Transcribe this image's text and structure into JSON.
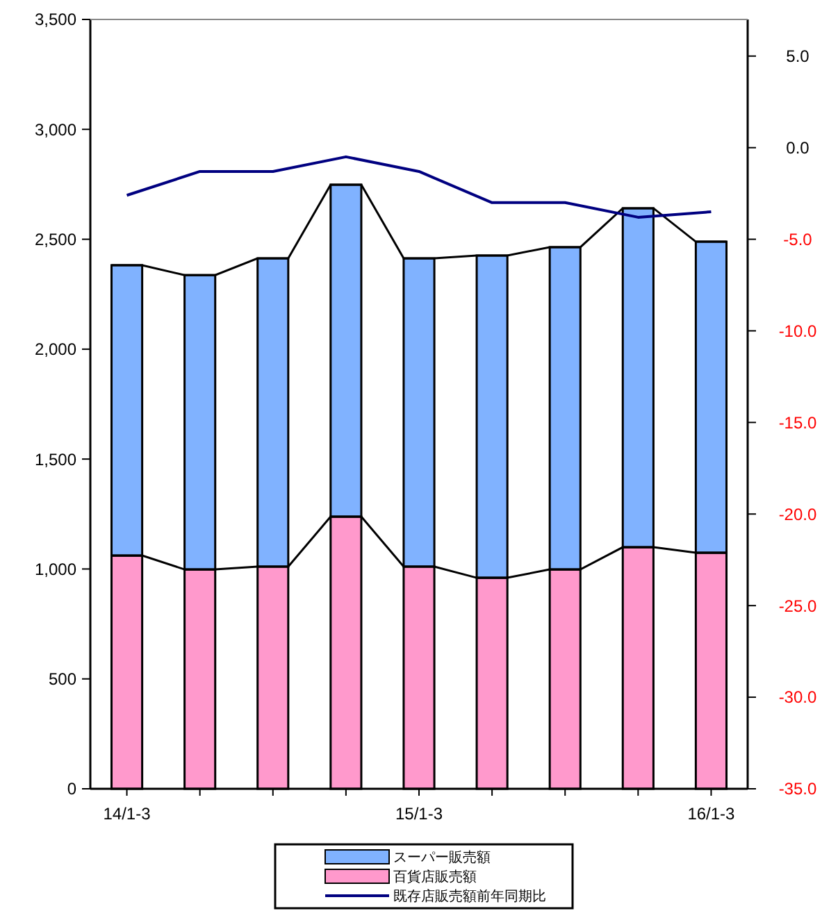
{
  "chart_data": {
    "type": "bar",
    "stacked": true,
    "categories": [
      "14/1-3",
      null,
      null,
      null,
      "15/1-3",
      null,
      null,
      null,
      "16/1-3"
    ],
    "series": [
      {
        "name": "百貨店販売額",
        "color": "#ff99cc",
        "values": [
          1061,
          998,
          1011,
          1238,
          1011,
          960,
          998,
          1099,
          1074
        ]
      },
      {
        "name": "スーパー販売額",
        "color": "#80b2ff",
        "values": [
          1321,
          1339,
          1402,
          1510,
          1402,
          1466,
          1466,
          1542,
          1415
        ]
      },
      {
        "name": "既存店販売額前年同期比",
        "type": "line",
        "axis": "y2",
        "color": "#000080",
        "values": [
          -2.6,
          -1.3,
          -1.3,
          -0.5,
          -1.3,
          -3.0,
          -3.0,
          -3.8,
          -3.5
        ]
      }
    ],
    "ylim": [
      0,
      3500
    ],
    "yticks": [
      {
        "value": 0,
        "label": "0"
      },
      {
        "value": 500,
        "label": "500"
      },
      {
        "value": 1000,
        "label": "1,000"
      },
      {
        "value": 1500,
        "label": "1,500"
      },
      {
        "value": 2000,
        "label": "2,000"
      },
      {
        "value": 2500,
        "label": "2,500"
      },
      {
        "value": 3000,
        "label": "3,000"
      },
      {
        "value": 3500,
        "label": "3,500"
      }
    ],
    "y2lim": [
      -35,
      7
    ],
    "y2ticks": [
      {
        "value": -35,
        "label": "-35.0"
      },
      {
        "value": -30,
        "label": "-30.0"
      },
      {
        "value": -25,
        "label": "-25.0"
      },
      {
        "value": -20,
        "label": "-20.0"
      },
      {
        "value": -15,
        "label": "-15.0"
      },
      {
        "value": -10,
        "label": "-10.0"
      },
      {
        "value": -5,
        "label": "-5.0"
      },
      {
        "value": 0,
        "label": "0.0"
      },
      {
        "value": 5,
        "label": "5.0"
      }
    ],
    "grid": false,
    "legend": "bottom"
  }
}
